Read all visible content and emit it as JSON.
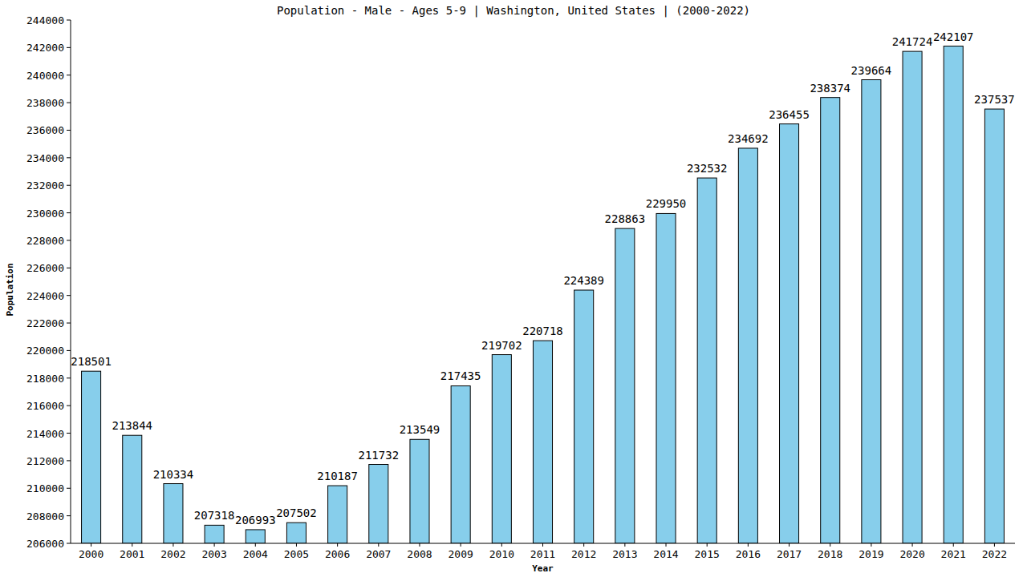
{
  "chart_data": {
    "type": "bar",
    "title": "Population - Male - Ages 5-9 | Washington, United States |  (2000-2022)",
    "x_label": "Year",
    "y_label": "Population",
    "categories": [
      "2000",
      "2001",
      "2002",
      "2003",
      "2004",
      "2005",
      "2006",
      "2007",
      "2008",
      "2009",
      "2010",
      "2011",
      "2012",
      "2013",
      "2014",
      "2015",
      "2016",
      "2017",
      "2018",
      "2019",
      "2020",
      "2021",
      "2022"
    ],
    "values": [
      218501,
      213844,
      210334,
      207318,
      206993,
      207502,
      210187,
      211732,
      213549,
      217435,
      219702,
      220718,
      224389,
      228863,
      229950,
      232532,
      234692,
      236455,
      238374,
      239664,
      241724,
      242107,
      237537
    ],
    "color": "#87ceeb",
    "ylim": [
      206000,
      244000
    ],
    "yticks": [
      206000,
      208000,
      210000,
      212000,
      214000,
      216000,
      218000,
      220000,
      222000,
      224000,
      226000,
      228000,
      230000,
      232000,
      234000,
      236000,
      238000,
      240000,
      242000,
      244000
    ],
    "grid": false,
    "data_labels": true
  }
}
